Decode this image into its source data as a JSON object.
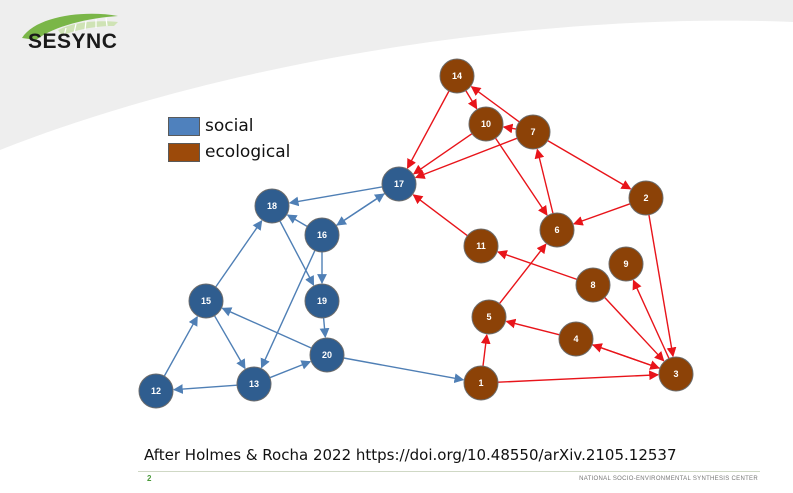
{
  "logo": {
    "text": "SESYNC",
    "icon": "leaf-arc-logo"
  },
  "legend": [
    {
      "label": "social",
      "color": "#4f81bd"
    },
    {
      "label": "ecological",
      "color": "#9c4a0a"
    }
  ],
  "network": {
    "colors": {
      "social": "#2f5d8f",
      "ecological": "#8c4207",
      "stroke": "#6c6c6c",
      "social_edge": "#4f7fb5",
      "ecological_edge": "#e8141a"
    },
    "nodes": [
      {
        "id": "1",
        "type": "ecological"
      },
      {
        "id": "2",
        "type": "ecological"
      },
      {
        "id": "3",
        "type": "ecological"
      },
      {
        "id": "4",
        "type": "ecological"
      },
      {
        "id": "5",
        "type": "ecological"
      },
      {
        "id": "6",
        "type": "ecological"
      },
      {
        "id": "7",
        "type": "ecological"
      },
      {
        "id": "8",
        "type": "ecological"
      },
      {
        "id": "9",
        "type": "ecological"
      },
      {
        "id": "10",
        "type": "ecological"
      },
      {
        "id": "11",
        "type": "ecological"
      },
      {
        "id": "14",
        "type": "ecological"
      },
      {
        "id": "12",
        "type": "social"
      },
      {
        "id": "13",
        "type": "social"
      },
      {
        "id": "15",
        "type": "social"
      },
      {
        "id": "16",
        "type": "social"
      },
      {
        "id": "17",
        "type": "social"
      },
      {
        "id": "18",
        "type": "social"
      },
      {
        "id": "19",
        "type": "social"
      },
      {
        "id": "20",
        "type": "social"
      }
    ],
    "edges": [
      {
        "from": "14",
        "to": "10",
        "type": "ecological"
      },
      {
        "from": "14",
        "to": "17",
        "type": "ecological"
      },
      {
        "from": "10",
        "to": "17",
        "type": "ecological"
      },
      {
        "from": "7",
        "to": "14",
        "type": "ecological"
      },
      {
        "from": "7",
        "to": "10",
        "type": "ecological"
      },
      {
        "from": "7",
        "to": "17",
        "type": "ecological"
      },
      {
        "from": "7",
        "to": "2",
        "type": "ecological"
      },
      {
        "from": "10",
        "to": "6",
        "type": "ecological"
      },
      {
        "from": "6",
        "to": "7",
        "type": "ecological"
      },
      {
        "from": "2",
        "to": "6",
        "type": "ecological"
      },
      {
        "from": "2",
        "to": "3",
        "type": "ecological"
      },
      {
        "from": "11",
        "to": "17",
        "type": "ecological"
      },
      {
        "from": "8",
        "to": "11",
        "type": "ecological"
      },
      {
        "from": "8",
        "to": "3",
        "type": "ecological"
      },
      {
        "from": "3",
        "to": "9",
        "type": "ecological"
      },
      {
        "from": "5",
        "to": "6",
        "type": "ecological"
      },
      {
        "from": "4",
        "to": "5",
        "type": "ecological"
      },
      {
        "from": "3",
        "to": "4",
        "type": "ecological"
      },
      {
        "from": "4",
        "to": "3",
        "type": "ecological"
      },
      {
        "from": "1",
        "to": "5",
        "type": "ecological"
      },
      {
        "from": "1",
        "to": "3",
        "type": "ecological"
      },
      {
        "from": "20",
        "to": "1",
        "type": "social"
      },
      {
        "from": "16",
        "to": "17",
        "type": "social"
      },
      {
        "from": "17",
        "to": "16",
        "type": "social"
      },
      {
        "from": "17",
        "to": "18",
        "type": "social"
      },
      {
        "from": "16",
        "to": "18",
        "type": "social"
      },
      {
        "from": "16",
        "to": "19",
        "type": "social"
      },
      {
        "from": "18",
        "to": "19",
        "type": "social"
      },
      {
        "from": "16",
        "to": "13",
        "type": "social"
      },
      {
        "from": "15",
        "to": "18",
        "type": "social"
      },
      {
        "from": "15",
        "to": "13",
        "type": "social"
      },
      {
        "from": "12",
        "to": "15",
        "type": "social"
      },
      {
        "from": "13",
        "to": "12",
        "type": "social"
      },
      {
        "from": "13",
        "to": "20",
        "type": "social"
      },
      {
        "from": "20",
        "to": "15",
        "type": "social"
      },
      {
        "from": "19",
        "to": "20",
        "type": "social"
      }
    ]
  },
  "citation": "After Holmes & Rocha 2022 https://doi.org/10.48550/arXiv.2105.12537",
  "footer": {
    "page_number": "2",
    "organization": "NATIONAL SOCIO-ENVIRONMENTAL SYNTHESIS CENTER"
  }
}
